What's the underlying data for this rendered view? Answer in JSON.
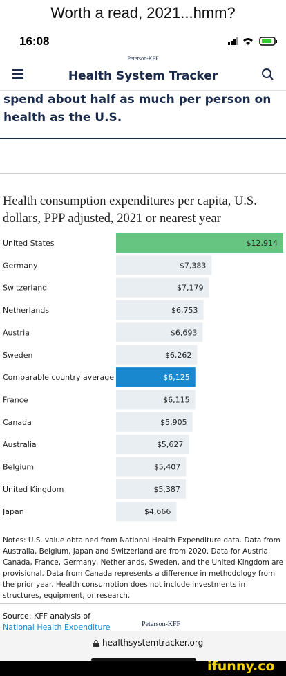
{
  "caption": "Worth a read, 2021...hmm?",
  "status_bar": {
    "time": "16:08"
  },
  "header": {
    "brand": "Peterson-KFF",
    "title": "Health System Tracker"
  },
  "headline": "spend about half as much per person on health as the U.S.",
  "chart_data": {
    "type": "bar",
    "orientation": "horizontal",
    "title": "Health consumption expenditures per capita, U.S. dollars, PPP adjusted, 2021 or nearest year",
    "categories": [
      "United States",
      "Germany",
      "Switzerland",
      "Netherlands",
      "Austria",
      "Sweden",
      "Comparable country average",
      "France",
      "Canada",
      "Australia",
      "Belgium",
      "United Kingdom",
      "Japan"
    ],
    "values": [
      12914,
      7383,
      7179,
      6753,
      6693,
      6262,
      6125,
      6115,
      5905,
      5627,
      5407,
      5387,
      4666
    ],
    "value_labels": [
      "$12,914",
      "$7,383",
      "$7,179",
      "$6,753",
      "$6,693",
      "$6,262",
      "$6,125",
      "$6,115",
      "$5,905",
      "$5,627",
      "$5,407",
      "$5,387",
      "$4,666"
    ],
    "colors": [
      "#66c580",
      "#e9eef2",
      "#e9eef2",
      "#e9eef2",
      "#e9eef2",
      "#e9eef2",
      "#1a88cf",
      "#e9eef2",
      "#e9eef2",
      "#e9eef2",
      "#e9eef2",
      "#e9eef2",
      "#e9eef2"
    ]
  },
  "notes": "Notes: U.S. value obtained from National Health Expenditure data. Data from Australia, Belgium, Japan and Switzerland are from 2020. Data for Austria, Canada, France, Germany, Netherlands, Sweden, and the United Kingdom are provisional. Data from Canada represents a difference in methodology from the prior year. Health consumption does not include investments in structures, equipment, or research.",
  "source": {
    "label": "Source: KFF analysis of",
    "link": "National Health Expenditure",
    "logo": "Peterson-KFF"
  },
  "url": "healthsystemtracker.org",
  "watermark": "ifunny.co"
}
